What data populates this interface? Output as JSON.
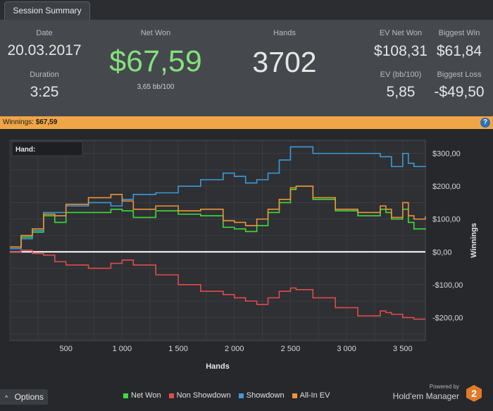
{
  "tab": {
    "label": "Session Summary"
  },
  "summary": {
    "date_label": "Date",
    "date_value": "20.03.2017",
    "duration_label": "Duration",
    "duration_value": "3:25",
    "net_won_label": "Net Won",
    "net_won_value": "$67,59",
    "net_won_sub": "3,65 bb/100",
    "hands_label": "Hands",
    "hands_value": "3702",
    "ev_net_won_label": "EV Net Won",
    "ev_net_won_value": "$108,31",
    "ev_bb_label": "EV (bb/100)",
    "ev_bb_value": "5,85",
    "biggest_win_label": "Biggest Win",
    "biggest_win_value": "$61,84",
    "biggest_loss_label": "Biggest Loss",
    "biggest_loss_value": "-$49,50"
  },
  "banner": {
    "label": "Winnings:",
    "value": "$67,59",
    "help_icon": "?"
  },
  "hand_box": {
    "label": "Hand:"
  },
  "options": {
    "label": "Options",
    "icon": "chevron-up-icon"
  },
  "brand": {
    "powered_by": "Powered by",
    "name": "Hold'em Manager",
    "logo_text": "2"
  },
  "colors": {
    "net_won": "#3ddc3d",
    "non_showdown": "#e04b4b",
    "showdown": "#3d9ad6",
    "all_in_ev": "#ef9338",
    "zero_line": "#ffffff"
  },
  "chart_data": {
    "type": "line",
    "xlabel": "Hands",
    "ylabel": "Winnings",
    "xlim": [
      0,
      3702
    ],
    "ylim": [
      -270,
      340
    ],
    "x_ticks": [
      500,
      1000,
      1500,
      2000,
      2500,
      3000,
      3500
    ],
    "x_tick_labels": [
      "500",
      "1 000",
      "1 500",
      "2 000",
      "2 500",
      "3 000",
      "3 500"
    ],
    "y_ticks": [
      300,
      200,
      100,
      0,
      -100,
      -200
    ],
    "y_tick_labels": [
      "$300,00",
      "$200,00",
      "$100,00",
      "$0,00",
      "-$100,00",
      "-$200,00"
    ],
    "grid": true,
    "legend_position": "bottom",
    "x": [
      0,
      100,
      200,
      300,
      400,
      500,
      700,
      900,
      1000,
      1100,
      1300,
      1500,
      1700,
      1900,
      2000,
      2100,
      2200,
      2300,
      2400,
      2500,
      2550,
      2700,
      2900,
      3100,
      3300,
      3350,
      3400,
      3500,
      3550,
      3600,
      3702
    ],
    "series": [
      {
        "name": "Net Won",
        "color": "#3ddc3d",
        "values": [
          10,
          45,
          60,
          110,
          90,
          120,
          120,
          130,
          125,
          105,
          125,
          115,
          110,
          75,
          70,
          62,
          80,
          120,
          150,
          190,
          200,
          160,
          125,
          110,
          130,
          120,
          100,
          130,
          90,
          70,
          68
        ]
      },
      {
        "name": "Non Showdown",
        "color": "#e04b4b",
        "values": [
          0,
          5,
          -5,
          -10,
          -30,
          -40,
          -50,
          -35,
          -25,
          -40,
          -70,
          -100,
          -120,
          -130,
          -140,
          -150,
          -160,
          -140,
          -120,
          -110,
          -115,
          -140,
          -170,
          -195,
          -180,
          -185,
          -190,
          -200,
          -200,
          -205,
          -205
        ]
      },
      {
        "name": "Showdown",
        "color": "#3d9ad6",
        "values": [
          10,
          40,
          65,
          120,
          120,
          140,
          150,
          140,
          160,
          175,
          180,
          200,
          220,
          240,
          230,
          210,
          220,
          240,
          280,
          320,
          320,
          300,
          300,
          300,
          290,
          290,
          260,
          300,
          270,
          260,
          262
        ]
      },
      {
        "name": "All-In EV",
        "color": "#ef9338",
        "values": [
          15,
          50,
          70,
          115,
          110,
          145,
          165,
          175,
          155,
          130,
          140,
          125,
          130,
          95,
          90,
          80,
          100,
          130,
          160,
          195,
          200,
          165,
          130,
          120,
          140,
          130,
          105,
          150,
          110,
          100,
          108
        ]
      }
    ]
  }
}
